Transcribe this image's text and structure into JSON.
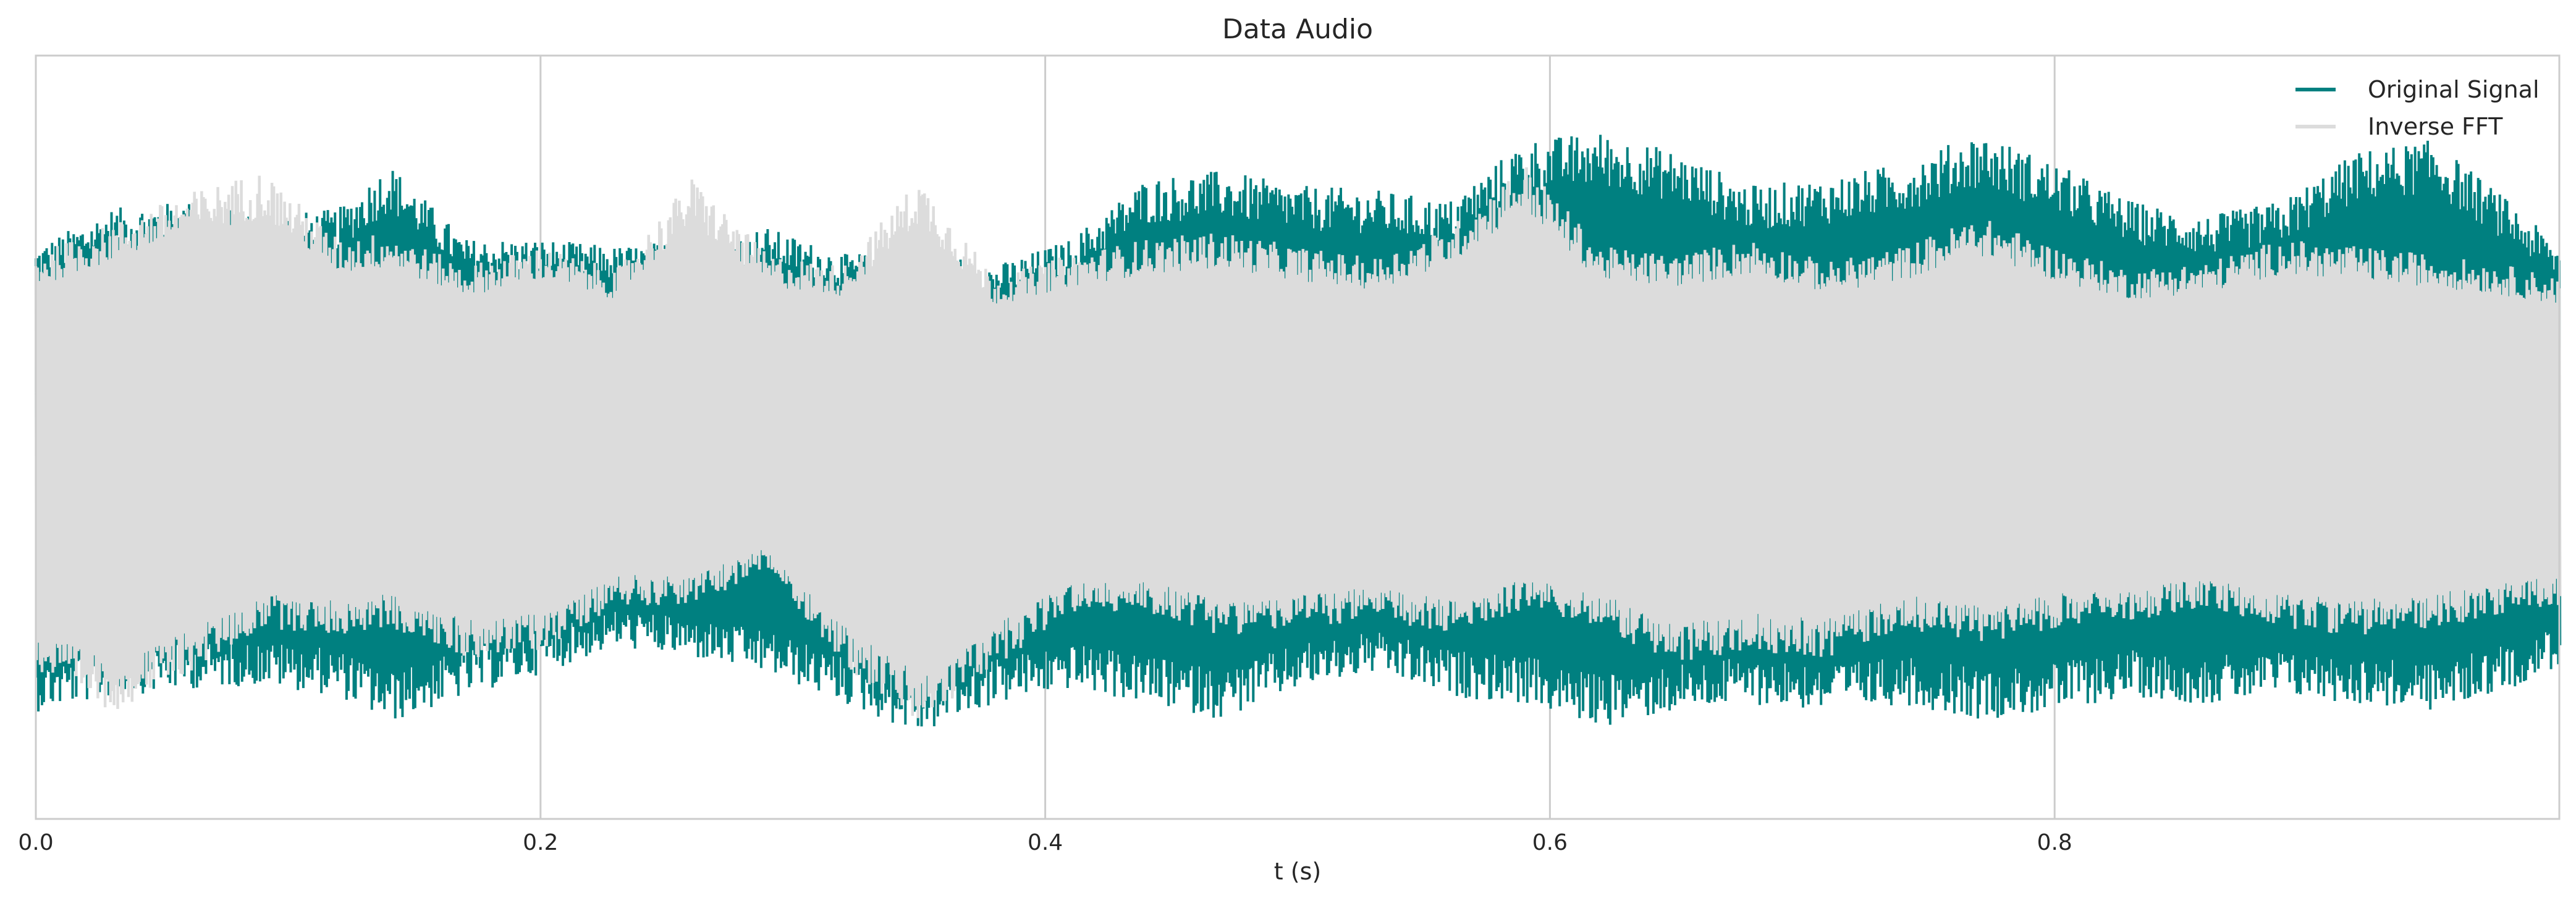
{
  "chart_data": {
    "type": "line",
    "title": "Data Audio",
    "xlabel": "t (s)",
    "ylabel": "",
    "xlim": [
      0.0,
      1.0
    ],
    "ylim": [
      -1.0,
      1.0
    ],
    "x_ticks": [
      0.0,
      0.2,
      0.4,
      0.6,
      0.8
    ],
    "x_tick_labels": [
      "0.0",
      "0.2",
      "0.4",
      "0.6",
      "0.8"
    ],
    "y_ticks_visible": false,
    "grid": "vertical",
    "legend_position": "top-right",
    "series": [
      {
        "name": "Original Signal",
        "color": "#008080",
        "envelope_t": [
          0.0,
          0.03,
          0.06,
          0.09,
          0.12,
          0.14,
          0.17,
          0.2,
          0.23,
          0.26,
          0.29,
          0.32,
          0.35,
          0.38,
          0.41,
          0.44,
          0.47,
          0.5,
          0.53,
          0.56,
          0.59,
          0.62,
          0.65,
          0.68,
          0.71,
          0.74,
          0.77,
          0.8,
          0.83,
          0.86,
          0.89,
          0.92,
          0.95,
          0.98,
          1.0
        ],
        "envelope_upper": [
          0.5,
          0.6,
          0.62,
          0.58,
          0.6,
          0.72,
          0.52,
          0.52,
          0.5,
          0.52,
          0.55,
          0.48,
          0.5,
          0.45,
          0.52,
          0.68,
          0.7,
          0.66,
          0.65,
          0.62,
          0.78,
          0.8,
          0.75,
          0.66,
          0.68,
          0.72,
          0.8,
          0.72,
          0.62,
          0.58,
          0.62,
          0.75,
          0.78,
          0.62,
          0.5
        ],
        "envelope_lower": [
          -0.72,
          -0.68,
          -0.66,
          -0.65,
          -0.68,
          -0.75,
          -0.68,
          -0.62,
          -0.55,
          -0.58,
          -0.62,
          -0.7,
          -0.78,
          -0.7,
          -0.66,
          -0.7,
          -0.74,
          -0.66,
          -0.62,
          -0.68,
          -0.7,
          -0.76,
          -0.72,
          -0.7,
          -0.72,
          -0.7,
          -0.74,
          -0.72,
          -0.68,
          -0.7,
          -0.68,
          -0.7,
          -0.72,
          -0.66,
          -0.6
        ]
      },
      {
        "name": "Inverse FFT",
        "color": "#dcdcdc",
        "envelope_t": [
          0.0,
          0.03,
          0.06,
          0.09,
          0.12,
          0.14,
          0.17,
          0.2,
          0.23,
          0.26,
          0.29,
          0.32,
          0.35,
          0.38,
          0.41,
          0.44,
          0.47,
          0.5,
          0.53,
          0.56,
          0.59,
          0.62,
          0.65,
          0.68,
          0.71,
          0.74,
          0.77,
          0.8,
          0.83,
          0.86,
          0.89,
          0.92,
          0.95,
          0.98,
          1.0
        ],
        "envelope_upper": [
          0.48,
          0.56,
          0.64,
          0.7,
          0.52,
          0.54,
          0.45,
          0.5,
          0.44,
          0.68,
          0.48,
          0.45,
          0.68,
          0.42,
          0.48,
          0.52,
          0.54,
          0.5,
          0.47,
          0.55,
          0.72,
          0.5,
          0.48,
          0.52,
          0.46,
          0.5,
          0.58,
          0.5,
          0.44,
          0.46,
          0.52,
          0.5,
          0.48,
          0.45,
          0.42
        ],
        "envelope_lower": [
          -0.62,
          -0.72,
          -0.62,
          -0.5,
          -0.52,
          -0.5,
          -0.58,
          -0.56,
          -0.44,
          -0.44,
          -0.35,
          -0.6,
          -0.76,
          -0.6,
          -0.46,
          -0.46,
          -0.52,
          -0.5,
          -0.48,
          -0.52,
          -0.45,
          -0.5,
          -0.6,
          -0.56,
          -0.58,
          -0.5,
          -0.54,
          -0.5,
          -0.48,
          -0.45,
          -0.5,
          -0.52,
          -0.5,
          -0.46,
          -0.44
        ]
      }
    ]
  }
}
